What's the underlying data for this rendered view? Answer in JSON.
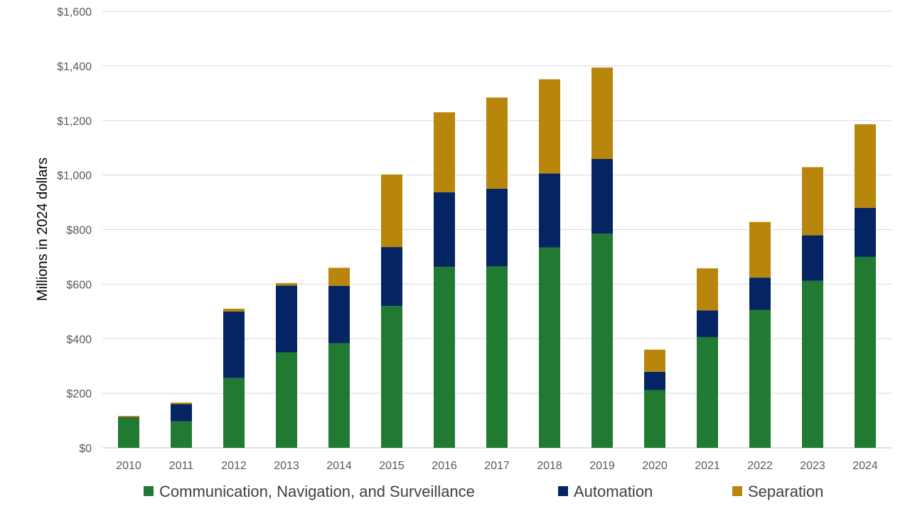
{
  "chart_data": {
    "type": "bar",
    "stacked": true,
    "title": "",
    "xlabel": "",
    "ylabel": "Millions in 2024 dollars",
    "ylim": [
      0,
      1600
    ],
    "yticks": [
      0,
      200,
      400,
      600,
      800,
      1000,
      1200,
      1400,
      1600
    ],
    "ytick_labels": [
      "$0",
      "$200",
      "$400",
      "$600",
      "$800",
      "$1,000",
      "$1,200",
      "$1,400",
      "$1,600"
    ],
    "grid": true,
    "legend_position": "bottom",
    "categories": [
      "2010",
      "2011",
      "2012",
      "2013",
      "2014",
      "2015",
      "2016",
      "2017",
      "2018",
      "2019",
      "2020",
      "2021",
      "2022",
      "2023",
      "2024"
    ],
    "series": [
      {
        "name": "Communication, Navigation, and Surveillance",
        "color": "#217a32",
        "values": [
          110,
          97,
          256,
          350,
          383,
          520,
          663,
          665,
          734,
          785,
          212,
          406,
          506,
          612,
          700
        ]
      },
      {
        "name": "Automation",
        "color": "#052463",
        "values": [
          2,
          63,
          244,
          245,
          211,
          216,
          274,
          285,
          272,
          274,
          67,
          98,
          118,
          167,
          180
        ]
      },
      {
        "name": "Separation",
        "color": "#b8860b",
        "values": [
          5,
          6,
          10,
          9,
          66,
          266,
          293,
          334,
          345,
          335,
          81,
          154,
          204,
          250,
          306
        ]
      }
    ]
  }
}
